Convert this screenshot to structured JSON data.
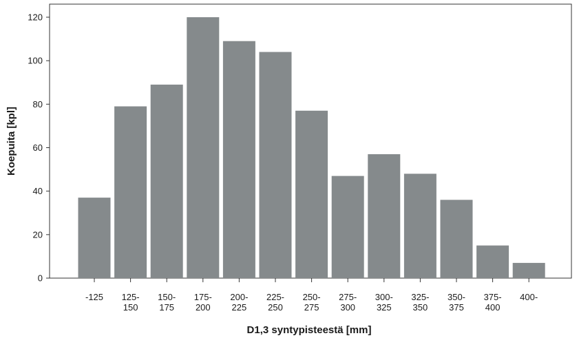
{
  "chart_data": {
    "type": "bar",
    "xlabel": "D1,3 syntypisteestä [mm]",
    "ylabel": "Koepuita [kpl]",
    "ylim": [
      0,
      120
    ],
    "y_ticks": [
      "0",
      "20",
      "40",
      "60",
      "80",
      "100",
      "120"
    ],
    "grid": false,
    "categories": [
      [
        "-125"
      ],
      [
        "125-",
        "150"
      ],
      [
        "150-",
        "175"
      ],
      [
        "175-",
        "200"
      ],
      [
        "200-",
        "225"
      ],
      [
        "225-",
        "250"
      ],
      [
        "250-",
        "275"
      ],
      [
        "275-",
        "300"
      ],
      [
        "300-",
        "325"
      ],
      [
        "325-",
        "350"
      ],
      [
        "350-",
        "375"
      ],
      [
        "375-",
        "400"
      ],
      [
        "400-"
      ]
    ],
    "values": [
      37,
      79,
      89,
      120,
      109,
      104,
      77,
      47,
      57,
      48,
      36,
      15,
      7
    ],
    "colors": {
      "bar": "#858a8c",
      "axis": "#333333",
      "plot_bg": "#ffffff"
    }
  }
}
